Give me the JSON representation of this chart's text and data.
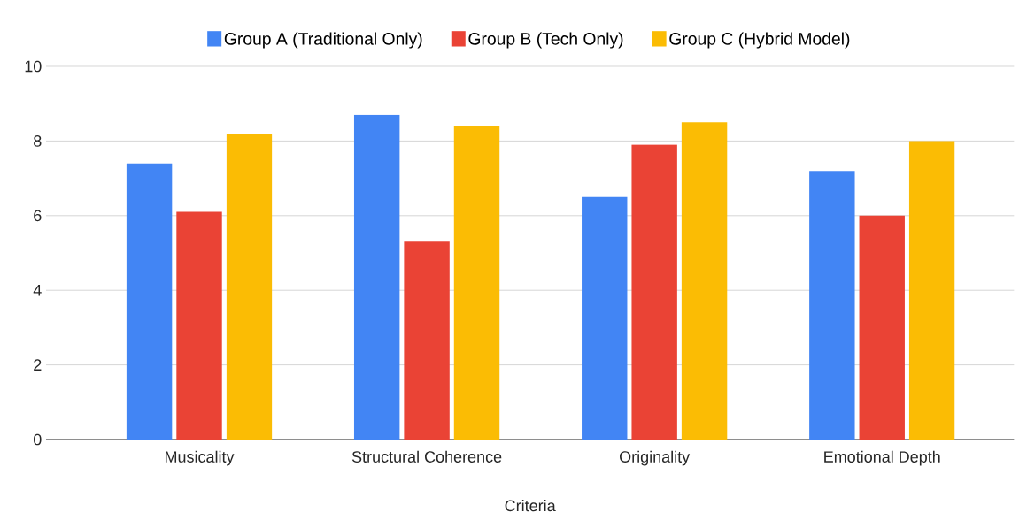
{
  "chart_data": {
    "type": "bar",
    "xlabel": "Criteria",
    "categories": [
      "Musicality",
      "Structural Coherence",
      "Originality",
      "Emotional Depth"
    ],
    "series": [
      {
        "name": "Group A (Traditional Only)",
        "color": "#4285f4",
        "values": [
          7.4,
          8.7,
          6.5,
          7.2
        ]
      },
      {
        "name": "Group B (Tech Only)",
        "color": "#ea4335",
        "values": [
          6.1,
          5.3,
          7.9,
          6.0
        ]
      },
      {
        "name": "Group C (Hybrid Model)",
        "color": "#fbbc04",
        "values": [
          8.2,
          8.4,
          8.5,
          8.0
        ]
      }
    ],
    "ylim": [
      0,
      10
    ],
    "yticks": [
      0,
      2,
      4,
      6,
      8,
      10
    ],
    "grid": "y",
    "legend": "top"
  }
}
